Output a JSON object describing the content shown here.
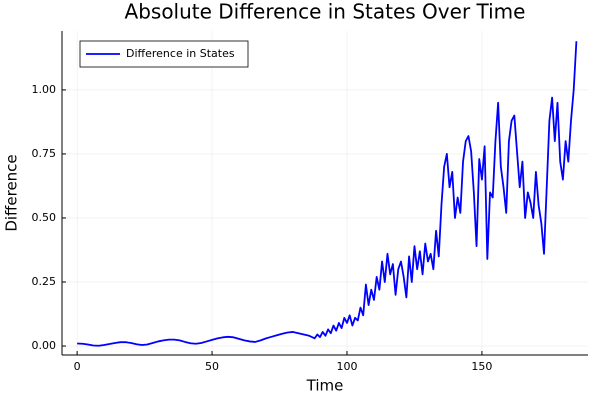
{
  "chart_data": {
    "type": "line",
    "title": "Absolute Difference in States Over Time",
    "x_label": "Time",
    "y_label": "Difference",
    "x": [
      0,
      2,
      4,
      6,
      8,
      10,
      12,
      14,
      16,
      18,
      20,
      22,
      24,
      26,
      28,
      30,
      32,
      34,
      36,
      38,
      40,
      42,
      44,
      46,
      48,
      50,
      52,
      54,
      56,
      58,
      60,
      62,
      64,
      66,
      68,
      70,
      72,
      74,
      76,
      78,
      80,
      82,
      84,
      86,
      88,
      89,
      90,
      91,
      92,
      93,
      94,
      95,
      96,
      97,
      98,
      99,
      100,
      101,
      102,
      103,
      104,
      105,
      106,
      107,
      108,
      109,
      110,
      111,
      112,
      113,
      114,
      115,
      116,
      117,
      118,
      119,
      120,
      121,
      122,
      123,
      124,
      125,
      126,
      127,
      128,
      129,
      130,
      131,
      132,
      133,
      134,
      135,
      136,
      137,
      138,
      139,
      140,
      141,
      142,
      143,
      144,
      145,
      146,
      147,
      148,
      149,
      150,
      151,
      152,
      153,
      154,
      155,
      156,
      157,
      158,
      159,
      160,
      161,
      162,
      163,
      164,
      165,
      166,
      167,
      168,
      169,
      170,
      171,
      172,
      173,
      174,
      175,
      176,
      177,
      178,
      179,
      180,
      181,
      182,
      183,
      184,
      185
    ],
    "series": [
      {
        "name": "Difference in States",
        "color": "#0000ff",
        "values": [
          0.01,
          0.009,
          0.006,
          0.002,
          0.001,
          0.004,
          0.008,
          0.012,
          0.015,
          0.015,
          0.012,
          0.007,
          0.004,
          0.006,
          0.012,
          0.018,
          0.022,
          0.025,
          0.025,
          0.022,
          0.016,
          0.011,
          0.009,
          0.012,
          0.018,
          0.024,
          0.03,
          0.034,
          0.036,
          0.034,
          0.028,
          0.022,
          0.018,
          0.016,
          0.022,
          0.03,
          0.036,
          0.042,
          0.048,
          0.053,
          0.055,
          0.05,
          0.045,
          0.04,
          0.03,
          0.045,
          0.035,
          0.055,
          0.04,
          0.065,
          0.05,
          0.08,
          0.06,
          0.09,
          0.07,
          0.11,
          0.09,
          0.12,
          0.08,
          0.11,
          0.1,
          0.15,
          0.12,
          0.24,
          0.16,
          0.22,
          0.18,
          0.27,
          0.22,
          0.33,
          0.25,
          0.36,
          0.28,
          0.32,
          0.2,
          0.3,
          0.33,
          0.27,
          0.19,
          0.35,
          0.25,
          0.39,
          0.3,
          0.37,
          0.28,
          0.4,
          0.33,
          0.36,
          0.3,
          0.45,
          0.35,
          0.55,
          0.7,
          0.75,
          0.62,
          0.68,
          0.5,
          0.58,
          0.52,
          0.72,
          0.8,
          0.82,
          0.76,
          0.6,
          0.39,
          0.73,
          0.65,
          0.78,
          0.34,
          0.6,
          0.58,
          0.8,
          0.95,
          0.7,
          0.62,
          0.52,
          0.8,
          0.88,
          0.9,
          0.76,
          0.62,
          0.72,
          0.5,
          0.6,
          0.56,
          0.5,
          0.68,
          0.55,
          0.48,
          0.36,
          0.62,
          0.88,
          0.97,
          0.8,
          0.95,
          0.72,
          0.65,
          0.8,
          0.72,
          0.88,
          1.0,
          1.19
        ]
      }
    ],
    "xlim": [
      -5.6,
      189.3
    ],
    "ylim": [
      -0.035,
      1.23
    ],
    "xticks": [
      0,
      50,
      100,
      150
    ],
    "yticks": [
      {
        "value": 0,
        "label": "0.00"
      },
      {
        "value": 0.25,
        "label": "0.25"
      },
      {
        "value": 0.5,
        "label": "0.50"
      },
      {
        "value": 0.75,
        "label": "0.75"
      },
      {
        "value": 1,
        "label": "1.00"
      }
    ],
    "grid": true,
    "legend": "top-left"
  }
}
